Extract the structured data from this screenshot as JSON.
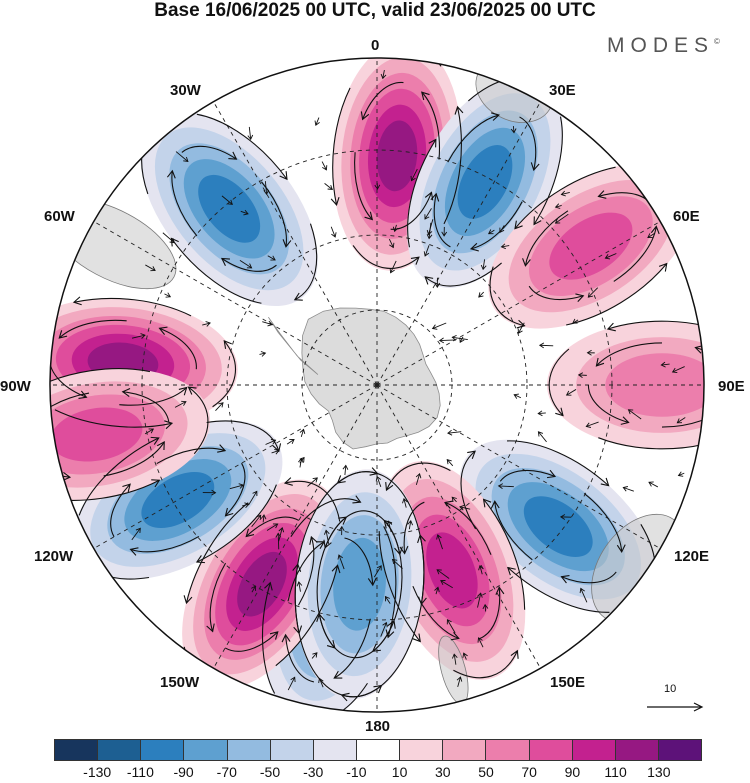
{
  "title": "Base 16/06/2025 00 UTC, valid 23/06/2025 00 UTC",
  "brand": "MODES",
  "brand_mark": "©",
  "longitude_labels": {
    "top": "0",
    "top_left": "30W",
    "top_right": "30E",
    "upper_left": "60W",
    "upper_right": "60E",
    "left": "90W",
    "right": "90E",
    "lower_left": "120W",
    "lower_right": "120E",
    "bottom_left": "150W",
    "bottom_right": "150E",
    "bottom": "180"
  },
  "vector_reference": "10",
  "colorbar": {
    "colors": [
      "#17355d",
      "#1d5f92",
      "#2c7fbe",
      "#5ea0d0",
      "#93bbe0",
      "#c3d3ea",
      "#e4e4f0",
      "#ffffff",
      "#f8d3dc",
      "#f2a9c0",
      "#ec7eac",
      "#df4d9c",
      "#c3218f",
      "#961882",
      "#5d1279"
    ],
    "tick_labels": [
      "-130",
      "-110",
      "-90",
      "-70",
      "-50",
      "-30",
      "-10",
      "10",
      "30",
      "50",
      "70",
      "90",
      "110",
      "130"
    ]
  },
  "map": {
    "projection": "south polar stereographic",
    "field": "anomaly shading with flow vectors",
    "anomaly_centers": [
      {
        "sign": "positive",
        "lon": 5,
        "level": 4,
        "intensity": 120
      },
      {
        "sign": "negative",
        "lon": 28,
        "level": 4,
        "intensity": -95
      },
      {
        "sign": "positive",
        "lon": 57,
        "level": 3,
        "intensity": 85
      },
      {
        "sign": "positive",
        "lon": 90,
        "level": 5,
        "intensity": 60
      },
      {
        "sign": "negative",
        "lon": 128,
        "level": 4,
        "intensity": -90
      },
      {
        "sign": "positive",
        "lon": 158,
        "level": 2,
        "intensity": 95
      },
      {
        "sign": "negative",
        "lon": -168,
        "level": 4,
        "intensity": -80
      },
      {
        "sign": "positive",
        "lon": -150,
        "level": 4,
        "intensity": 110
      },
      {
        "sign": "negative",
        "lon": -120,
        "level": 4,
        "intensity": -100
      },
      {
        "sign": "positive",
        "lon": -85,
        "level": 3,
        "intensity": 110
      },
      {
        "sign": "negative",
        "lon": -40,
        "level": 4,
        "intensity": -100
      },
      {
        "sign": "positive",
        "lon": -100,
        "level": 5,
        "intensity": 70
      },
      {
        "sign": "positive",
        "lon": -175,
        "level": 2,
        "intensity": 50
      },
      {
        "sign": "negative",
        "lon": -175,
        "level": 2,
        "intensity": -80
      }
    ]
  }
}
